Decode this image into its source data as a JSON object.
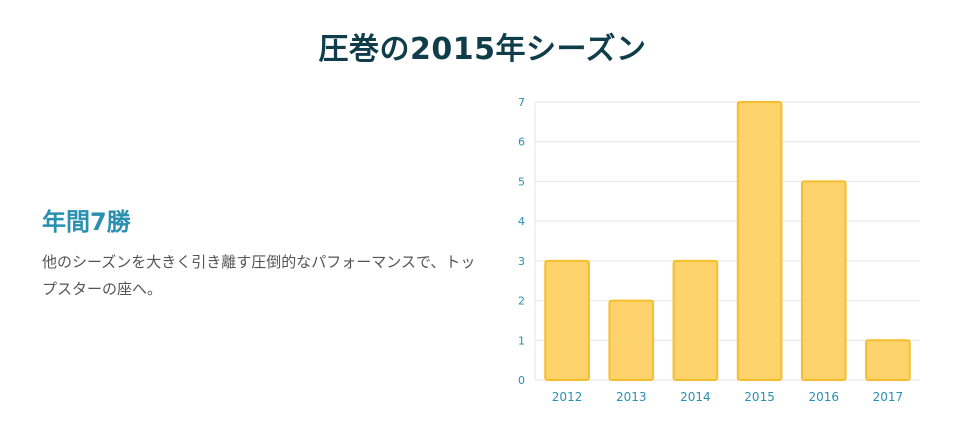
{
  "header": {
    "title": "圧巻の2015年シーズン"
  },
  "highlight": {
    "heading": "年間7勝",
    "description": "他のシーズンを大きく引き離す圧倒的なパフォーマンスで、トップスターの座へ。"
  },
  "colors": {
    "bar_fill": "#ffd36b",
    "bar_stroke": "#f5be2e",
    "axis_text": "#2a90b0",
    "grid": "#e6e6e6"
  },
  "chart_data": {
    "type": "bar",
    "categories": [
      "2012",
      "2013",
      "2014",
      "2015",
      "2016",
      "2017"
    ],
    "values": [
      3,
      2,
      3,
      7,
      5,
      1
    ],
    "ylim": [
      0,
      7
    ],
    "yticks": [
      0,
      1,
      2,
      3,
      4,
      5,
      6,
      7
    ],
    "grid": true,
    "legend": "none"
  }
}
